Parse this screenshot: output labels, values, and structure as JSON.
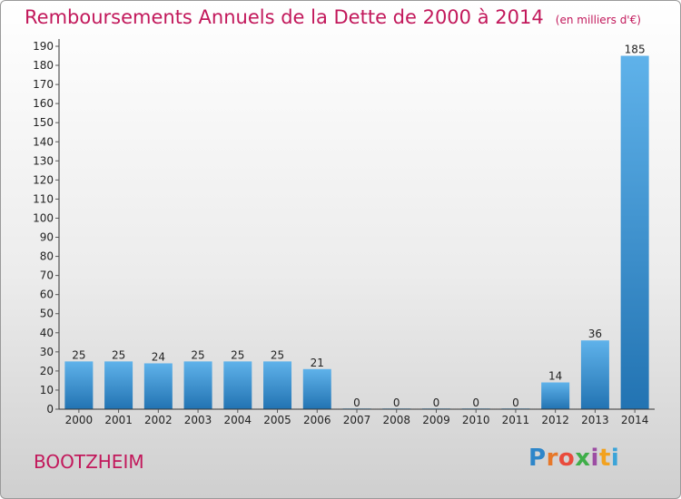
{
  "header": {
    "title": "Remboursements Annuels de la Dette de 2000 à 2014",
    "unit": "(en milliers d'€)"
  },
  "footer": {
    "commune": "BOOTZHEIM",
    "logo_letters": [
      "P",
      "r",
      "o",
      "x",
      "i",
      "t",
      "i"
    ],
    "logo_colors": [
      "#2e86c9",
      "#e7782a",
      "#e94b3c",
      "#3fae49",
      "#9c4da3",
      "#f2a21f",
      "#3ba4d8"
    ]
  },
  "colors": {
    "title": "#c2185b",
    "bar_light": "#5fb2ea",
    "bar_dark": "#2273b2",
    "axis": "#333333",
    "grid_tick": "#555555"
  },
  "chart_data": {
    "type": "bar",
    "title": "Remboursements Annuels de la Dette de 2000 à 2014",
    "categories": [
      "2000",
      "2001",
      "2002",
      "2003",
      "2004",
      "2005",
      "2006",
      "2007",
      "2008",
      "2009",
      "2010",
      "2011",
      "2012",
      "2013",
      "2014"
    ],
    "values": [
      25,
      25,
      24,
      25,
      25,
      25,
      21,
      0,
      0,
      0,
      0,
      0,
      14,
      36,
      185
    ],
    "data_labels": [
      "25",
      "25",
      "24",
      "25",
      "25",
      "25",
      "21",
      "0",
      "0",
      "0",
      "0",
      "0",
      "14",
      "36",
      "185"
    ],
    "ylim": [
      0,
      190
    ],
    "yticks": [
      0,
      10,
      20,
      30,
      40,
      50,
      60,
      70,
      80,
      90,
      100,
      110,
      120,
      130,
      140,
      150,
      160,
      170,
      180,
      190
    ],
    "xlabel": "",
    "ylabel": "",
    "grid": false,
    "legend": "none"
  }
}
